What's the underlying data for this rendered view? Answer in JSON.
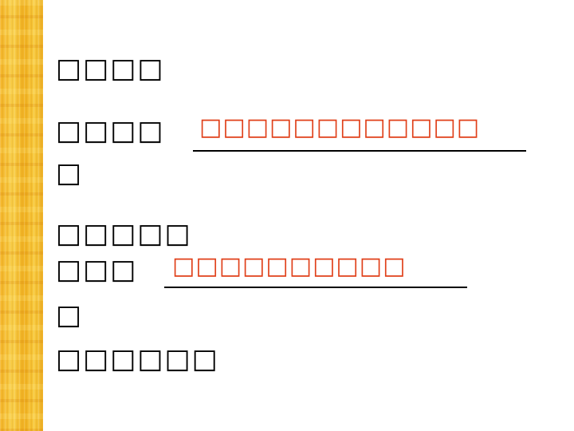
{
  "lines": {
    "l1": "□□□□",
    "l2": "□□□□",
    "l2_cont": "□",
    "l3": "□□□□□",
    "l4": "□□□",
    "l4_cont": "□",
    "l5": "□□□□□□"
  },
  "answers": {
    "a1": "□□□□□□□□□□□□",
    "a2": "□□□□□□□□□□"
  },
  "colors": {
    "answer": "#e0401a",
    "stripe": "#f3b428"
  }
}
